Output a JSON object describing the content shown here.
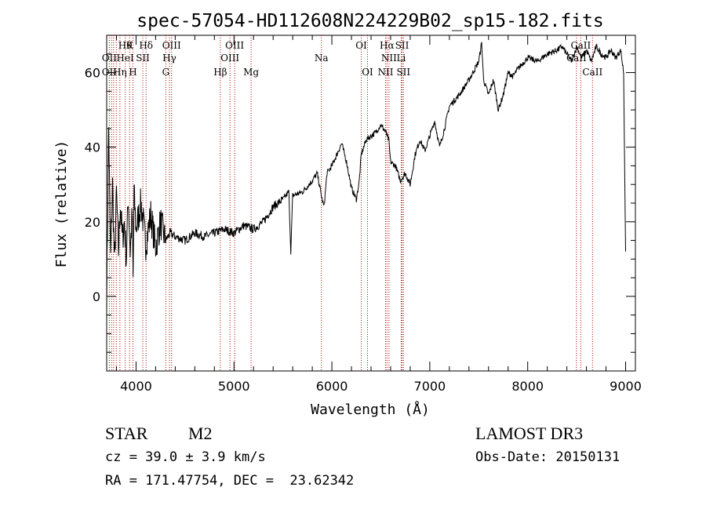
{
  "chart_data": {
    "type": "line",
    "title": "spec-57054-HD112608N224229B02_sp15-182.fits",
    "xlabel": "Wavelength (Å)",
    "ylabel": "Flux (relative)",
    "xlim": [
      3700,
      9100
    ],
    "ylim": [
      -20,
      70
    ],
    "x_ticks": [
      4000,
      5000,
      6000,
      7000,
      8000,
      9000
    ],
    "x_tick_labels": [
      "4000",
      "5000",
      "6000",
      "7000",
      "8000",
      "9000"
    ],
    "y_ticks": [
      0,
      20,
      40,
      60
    ],
    "y_tick_labels": [
      "0",
      "20",
      "40",
      "60"
    ],
    "grid": false,
    "series": [
      {
        "x": [
          3700,
          3720,
          3740,
          3760,
          3780,
          3800,
          3820,
          3840,
          3860,
          3880,
          3900,
          3920,
          3940,
          3960,
          3970,
          3980,
          4000,
          4050,
          4100,
          4150,
          4200,
          4250,
          4300,
          4350,
          4400,
          4500,
          4600,
          4700,
          4800,
          4900,
          5000,
          5100,
          5200,
          5300,
          5400,
          5500,
          5560,
          5580,
          5600,
          5700,
          5800,
          5850,
          5900,
          5920,
          5950,
          6000,
          6050,
          6100,
          6150,
          6200,
          6250,
          6280,
          6300,
          6350,
          6400,
          6450,
          6500,
          6550,
          6580,
          6600,
          6650,
          6700,
          6750,
          6800,
          6850,
          6900,
          6950,
          7000,
          7050,
          7100,
          7150,
          7200,
          7300,
          7400,
          7500,
          7530,
          7550,
          7600,
          7650,
          7700,
          7750,
          7800,
          7850,
          7900,
          8000,
          8100,
          8200,
          8300,
          8350,
          8400,
          8450,
          8500,
          8550,
          8600,
          8650,
          8700,
          8750,
          8800,
          8850,
          8900,
          8950,
          8980,
          9000
        ],
        "y": [
          0,
          45,
          10,
          30,
          8,
          28,
          12,
          25,
          15,
          20,
          10,
          27,
          12,
          22,
          4,
          28,
          18,
          25,
          14,
          22,
          13,
          20,
          15,
          17,
          16,
          15,
          17,
          16,
          17,
          18,
          17,
          19,
          18,
          20,
          24,
          26,
          28,
          12,
          27,
          28,
          31,
          33,
          26,
          24,
          33,
          35,
          38,
          41,
          36,
          29,
          26,
          31,
          38,
          42,
          43,
          44,
          46,
          44,
          42,
          36,
          35,
          31,
          33,
          30,
          38,
          42,
          39,
          43,
          47,
          40,
          45,
          51,
          54,
          58,
          63,
          68,
          58,
          54,
          58,
          50,
          54,
          60,
          59,
          61,
          64,
          63,
          65,
          66,
          67,
          65,
          63,
          67,
          64,
          66,
          63,
          67,
          65,
          64,
          66,
          64,
          66,
          60,
          12
        ]
      }
    ],
    "annotation_color": "#b40000",
    "annotations": {
      "row1": [
        {
          "x": 3889,
          "label": "Hθ"
        },
        {
          "x": 3934,
          "label": "K"
        },
        {
          "x": 4102,
          "label": "Hδ"
        },
        {
          "x": 4363,
          "label": "OIII"
        },
        {
          "x": 5007,
          "label": "OIII"
        },
        {
          "x": 6300,
          "label": "OI"
        },
        {
          "x": 6563,
          "label": "Hα"
        },
        {
          "x": 6717,
          "label": "SII"
        },
        {
          "x": 8542,
          "label": "CaII"
        }
      ],
      "row2": [
        {
          "x": 3727,
          "label": "OII"
        },
        {
          "x": 3889,
          "label": "HeI"
        },
        {
          "x": 4069,
          "label": "SII"
        },
        {
          "x": 4341,
          "label": "Hγ"
        },
        {
          "x": 4959,
          "label": "OIII"
        },
        {
          "x": 5893,
          "label": "Na"
        },
        {
          "x": 6583,
          "label": "NII"
        },
        {
          "x": 6708,
          "label": "Li"
        },
        {
          "x": 8498,
          "label": "CaII"
        }
      ],
      "row3": [
        {
          "x": 3727,
          "label": "OII"
        },
        {
          "x": 3835,
          "label": "Hη"
        },
        {
          "x": 3968,
          "label": "H"
        },
        {
          "x": 4304,
          "label": "G"
        },
        {
          "x": 4861,
          "label": "Hβ"
        },
        {
          "x": 5175,
          "label": "Mg"
        },
        {
          "x": 6364,
          "label": "OI"
        },
        {
          "x": 6548,
          "label": "NII"
        },
        {
          "x": 6731,
          "label": "SII"
        },
        {
          "x": 8662,
          "label": "CaII"
        }
      ],
      "lines": [
        3727,
        3750,
        3771,
        3798,
        3835,
        3889,
        3934,
        3968,
        4069,
        4102,
        4304,
        4341,
        4363,
        4861,
        4959,
        5007,
        5175,
        5893,
        6300,
        6364,
        6548,
        6563,
        6583,
        6708,
        6717,
        6731,
        8498,
        8542,
        8662
      ]
    }
  },
  "info": {
    "object_class": "STAR",
    "subclass": "M2",
    "survey": "LAMOST DR3",
    "redshift_line": "cz = 39.0 ± 3.9 km/s",
    "obs_date_line": "Obs-Date: 20150131",
    "coords_line": "RA = 171.47754, DEC =  23.62342"
  }
}
